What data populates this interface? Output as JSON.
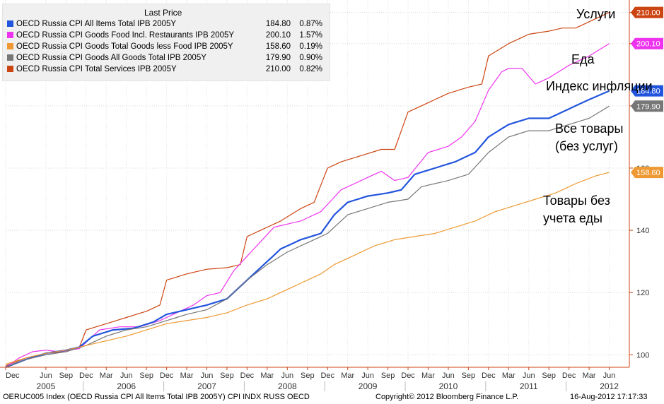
{
  "legend": {
    "header": "Last Price",
    "rows": [
      {
        "name": "OECD Russia CPI All Items Total IPB 2005Y",
        "price": "184.80",
        "change": "0.87%",
        "color": "#2255dd"
      },
      {
        "name": "OECD Russia CPI Goods Food Incl. Restaurants IPB 2005Y",
        "price": "200.10",
        "change": "1.57%",
        "color": "#ee33ee"
      },
      {
        "name": "OECD Russia CPI Goods Total Goods less Food IPB 2005Y",
        "price": "158.60",
        "change": "0.19%",
        "color": "#ee9933"
      },
      {
        "name": "OECD Russia CPI Goods All Goods Total IPB 2005Y",
        "price": "179.90",
        "change": "0.90%",
        "color": "#777777"
      },
      {
        "name": "OECD Russia CPI Total Services IPB 2005Y",
        "price": "210.00",
        "change": "0.82%",
        "color": "#cc4411"
      }
    ]
  },
  "annotations": {
    "services": "Услуги",
    "food": "Еда",
    "inflation_line1": "Индекс инфляции",
    "goods_line1": "Все товары",
    "goods_line2": "(без услуг)",
    "nonfood_line1": "Товары без",
    "nonfood_line2": "учета еды"
  },
  "footer": {
    "left": "OERUC005 Index (OECD Russia CPI All Items Total IPB 2005Y) CPI INDX RUSS OECD",
    "center": "Copyright© 2012 Bloomberg Finance L.P.",
    "right": "16-Aug-2012 17:17:33"
  },
  "chart_data": {
    "type": "line",
    "x_start": "2004-12",
    "x_frequency": "monthly",
    "ylim": [
      96,
      214
    ],
    "y_ticks": [
      100,
      120,
      140,
      160,
      180,
      200,
      210
    ],
    "y_tick_labels": [
      "100",
      "120",
      "140",
      "160",
      "180",
      "200",
      "210"
    ],
    "x_tick_labels": [
      "Dec",
      "Jun",
      "Sep",
      "Dec",
      "Mar",
      "Jun",
      "Sep",
      "Dec",
      "Mar",
      "Jun",
      "Sep",
      "Dec",
      "Mar",
      "Jun",
      "Sep",
      "Dec",
      "Mar",
      "Jun",
      "Sep",
      "Dec",
      "Mar",
      "Jun",
      "Sep",
      "Dec",
      "Mar",
      "Jun",
      "Sep",
      "Dec",
      "Mar",
      "Jun"
    ],
    "x_tick_months": [
      0,
      6,
      9,
      12,
      15,
      18,
      21,
      24,
      27,
      30,
      33,
      36,
      39,
      42,
      45,
      48,
      51,
      54,
      57,
      60,
      63,
      66,
      69,
      72,
      75,
      78,
      81,
      84,
      87,
      90
    ],
    "year_labels": [
      {
        "label": "2005",
        "month": 6
      },
      {
        "label": "2006",
        "month": 18
      },
      {
        "label": "2007",
        "month": 30
      },
      {
        "label": "2008",
        "month": 42
      },
      {
        "label": "2009",
        "month": 54
      },
      {
        "label": "2010",
        "month": 66
      },
      {
        "label": "2011",
        "month": 78
      },
      {
        "label": "2012",
        "month": 90
      }
    ],
    "series": [
      {
        "name": "OECD Russia CPI Total Services IPB 2005Y",
        "color": "#cc4411",
        "last_label": "210.00",
        "anchors": [
          [
            0,
            96.5
          ],
          [
            3,
            99
          ],
          [
            6,
            100.5
          ],
          [
            9,
            101
          ],
          [
            11,
            102.5
          ],
          [
            12,
            108
          ],
          [
            15,
            110
          ],
          [
            18,
            112
          ],
          [
            21,
            114
          ],
          [
            23,
            116
          ],
          [
            24,
            124
          ],
          [
            27,
            126
          ],
          [
            30,
            127.5
          ],
          [
            33,
            128
          ],
          [
            35,
            129
          ],
          [
            36,
            138
          ],
          [
            38,
            140
          ],
          [
            41,
            143
          ],
          [
            44,
            147
          ],
          [
            46,
            149
          ],
          [
            48,
            160
          ],
          [
            50,
            162
          ],
          [
            53,
            164
          ],
          [
            56,
            166
          ],
          [
            58,
            166
          ],
          [
            60,
            178
          ],
          [
            63,
            181
          ],
          [
            66,
            184
          ],
          [
            69,
            186
          ],
          [
            71,
            187
          ],
          [
            72,
            196
          ],
          [
            75,
            200
          ],
          [
            78,
            203
          ],
          [
            81,
            204
          ],
          [
            83,
            205
          ],
          [
            85,
            205
          ],
          [
            87,
            207
          ],
          [
            90,
            210
          ]
        ]
      },
      {
        "name": "OECD Russia CPI Goods Food Incl. Restaurants IPB 2005Y",
        "color": "#ee33ee",
        "last_label": "200.10",
        "anchors": [
          [
            0,
            96
          ],
          [
            2,
            99
          ],
          [
            4,
            101
          ],
          [
            6,
            101.5
          ],
          [
            8,
            101
          ],
          [
            11,
            102
          ],
          [
            12,
            104
          ],
          [
            14,
            108
          ],
          [
            17,
            109
          ],
          [
            20,
            109
          ],
          [
            23,
            111
          ],
          [
            26,
            114
          ],
          [
            28,
            116
          ],
          [
            30,
            119
          ],
          [
            32,
            120
          ],
          [
            34,
            127
          ],
          [
            37,
            134
          ],
          [
            40,
            141
          ],
          [
            42,
            142
          ],
          [
            44,
            143
          ],
          [
            47,
            146
          ],
          [
            50,
            153
          ],
          [
            53,
            156
          ],
          [
            56,
            159
          ],
          [
            58,
            156
          ],
          [
            60,
            157
          ],
          [
            63,
            165
          ],
          [
            66,
            167
          ],
          [
            68,
            170
          ],
          [
            70,
            175
          ],
          [
            72,
            185
          ],
          [
            74,
            191
          ],
          [
            75,
            192
          ],
          [
            77,
            192
          ],
          [
            79,
            187
          ],
          [
            81,
            189
          ],
          [
            84,
            193
          ],
          [
            87,
            196
          ],
          [
            90,
            200
          ]
        ]
      },
      {
        "name": "OECD Russia CPI All Items Total IPB 2005Y",
        "color": "#2255dd",
        "last_label": "184.80",
        "anchors": [
          [
            0,
            96
          ],
          [
            3,
            98.5
          ],
          [
            6,
            100.5
          ],
          [
            9,
            101.5
          ],
          [
            11,
            102.5
          ],
          [
            13,
            106
          ],
          [
            16,
            108
          ],
          [
            19,
            108.5
          ],
          [
            22,
            110.5
          ],
          [
            24,
            113
          ],
          [
            27,
            114.5
          ],
          [
            30,
            116
          ],
          [
            33,
            118
          ],
          [
            35,
            122
          ],
          [
            38,
            128
          ],
          [
            41,
            134
          ],
          [
            44,
            137
          ],
          [
            47,
            139
          ],
          [
            49,
            145
          ],
          [
            51,
            149
          ],
          [
            54,
            151
          ],
          [
            57,
            152
          ],
          [
            59,
            153
          ],
          [
            61,
            158
          ],
          [
            64,
            160
          ],
          [
            67,
            162
          ],
          [
            70,
            165
          ],
          [
            72,
            170
          ],
          [
            75,
            174
          ],
          [
            78,
            176
          ],
          [
            81,
            176
          ],
          [
            84,
            179
          ],
          [
            87,
            182
          ],
          [
            90,
            184.8
          ]
        ]
      },
      {
        "name": "OECD Russia CPI Goods All Goods Total IPB 2005Y",
        "color": "#777777",
        "last_label": "179.90",
        "anchors": [
          [
            0,
            96
          ],
          [
            3,
            98.5
          ],
          [
            6,
            100
          ],
          [
            9,
            101
          ],
          [
            12,
            103
          ],
          [
            15,
            106
          ],
          [
            18,
            108
          ],
          [
            21,
            109
          ],
          [
            24,
            111
          ],
          [
            27,
            113
          ],
          [
            30,
            114.5
          ],
          [
            33,
            118
          ],
          [
            36,
            124
          ],
          [
            39,
            129
          ],
          [
            42,
            133
          ],
          [
            45,
            136
          ],
          [
            48,
            139
          ],
          [
            51,
            145
          ],
          [
            54,
            147
          ],
          [
            57,
            149
          ],
          [
            60,
            150
          ],
          [
            62,
            154
          ],
          [
            66,
            156
          ],
          [
            69,
            158
          ],
          [
            72,
            165
          ],
          [
            75,
            170
          ],
          [
            78,
            172
          ],
          [
            81,
            172
          ],
          [
            84,
            174
          ],
          [
            87,
            176
          ],
          [
            90,
            179.9
          ]
        ]
      },
      {
        "name": "OECD Russia CPI Goods Total Goods less Food IPB 2005Y",
        "color": "#ee9933",
        "last_label": "158.60",
        "anchors": [
          [
            0,
            97
          ],
          [
            3,
            99
          ],
          [
            6,
            100.5
          ],
          [
            9,
            101.5
          ],
          [
            12,
            103
          ],
          [
            15,
            104.5
          ],
          [
            18,
            106
          ],
          [
            21,
            108
          ],
          [
            24,
            110
          ],
          [
            27,
            111
          ],
          [
            30,
            112
          ],
          [
            33,
            113.5
          ],
          [
            36,
            116
          ],
          [
            39,
            118
          ],
          [
            42,
            121
          ],
          [
            45,
            124
          ],
          [
            47,
            126
          ],
          [
            49,
            129
          ],
          [
            52,
            132
          ],
          [
            55,
            135
          ],
          [
            58,
            137
          ],
          [
            61,
            138
          ],
          [
            64,
            139
          ],
          [
            67,
            141
          ],
          [
            70,
            143
          ],
          [
            73,
            146
          ],
          [
            76,
            148
          ],
          [
            79,
            150
          ],
          [
            82,
            152
          ],
          [
            85,
            155
          ],
          [
            88,
            157.5
          ],
          [
            90,
            158.6
          ]
        ]
      }
    ]
  }
}
